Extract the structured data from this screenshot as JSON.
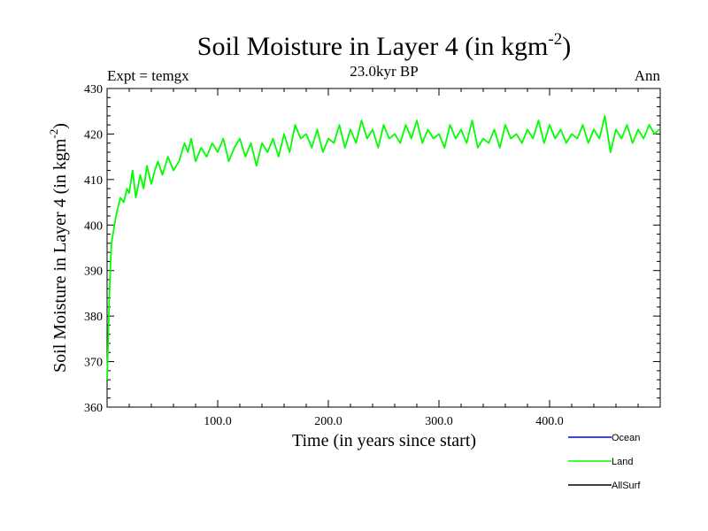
{
  "chart_data": {
    "type": "line",
    "title": "Soil Moisture in Layer 4 (in kgm",
    "title_sup": "-2",
    "title_end": ")",
    "expt_label": "Expt = temgx",
    "period_label": "23.0kyr BP",
    "season_label": "Ann",
    "xlabel": "Time (in years since start)",
    "ylabel": "Soil Moisture in Layer 4 (in kgm",
    "ylabel_sup": "-2",
    "ylabel_end": ")",
    "xlim": [
      0,
      500
    ],
    "ylim": [
      360,
      430
    ],
    "x_ticks": [
      100,
      200,
      300,
      400
    ],
    "x_tick_labels": [
      "100.0",
      "200.0",
      "300.0",
      "400.0"
    ],
    "y_ticks": [
      360,
      370,
      380,
      390,
      400,
      410,
      420,
      430
    ],
    "y_tick_labels": [
      "360",
      "370",
      "380",
      "390",
      "400",
      "410",
      "420",
      "430"
    ],
    "colors": {
      "Ocean": "#0000ff",
      "Land": "#00ff00",
      "AllSurf": "#000000"
    },
    "legend": [
      "Ocean",
      "Land",
      "AllSurf"
    ],
    "series": [
      {
        "name": "Land",
        "x": [
          0,
          1,
          2,
          3,
          4,
          6,
          8,
          10,
          12,
          15,
          18,
          20,
          23,
          26,
          30,
          33,
          36,
          40,
          43,
          46,
          50,
          55,
          60,
          65,
          70,
          73,
          76,
          80,
          85,
          90,
          95,
          100,
          105,
          110,
          115,
          120,
          125,
          130,
          135,
          140,
          145,
          150,
          155,
          160,
          165,
          170,
          175,
          180,
          185,
          190,
          195,
          200,
          205,
          210,
          215,
          220,
          225,
          230,
          235,
          240,
          245,
          250,
          255,
          260,
          265,
          270,
          275,
          280,
          285,
          290,
          295,
          300,
          305,
          310,
          315,
          320,
          325,
          330,
          335,
          340,
          345,
          350,
          355,
          360,
          365,
          370,
          375,
          380,
          385,
          390,
          395,
          400,
          405,
          410,
          415,
          420,
          425,
          430,
          435,
          440,
          445,
          450,
          455,
          460,
          465,
          470,
          475,
          480,
          485,
          490,
          495,
          499
        ],
        "values": [
          366,
          375,
          384,
          391,
          396,
          399,
          402,
          404,
          406,
          405,
          408,
          407,
          412,
          406,
          411,
          408,
          413,
          409,
          412,
          414,
          411,
          415,
          412,
          414,
          418,
          416,
          419,
          414,
          417,
          415,
          418,
          416,
          419,
          414,
          417,
          419,
          415,
          418,
          413,
          418,
          416,
          419,
          415,
          420,
          416,
          422,
          419,
          420,
          417,
          421,
          416,
          419,
          418,
          422,
          417,
          421,
          418,
          423,
          419,
          421,
          417,
          422,
          419,
          420,
          418,
          422,
          419,
          423,
          418,
          421,
          419,
          420,
          417,
          422,
          419,
          421,
          418,
          423,
          417,
          419,
          418,
          421,
          417,
          422,
          419,
          420,
          418,
          421,
          419,
          423,
          418,
          422,
          419,
          421,
          418,
          420,
          419,
          422,
          418,
          421,
          419,
          424,
          416,
          421,
          419,
          422,
          418,
          421,
          419,
          422,
          420,
          421
        ]
      }
    ]
  }
}
